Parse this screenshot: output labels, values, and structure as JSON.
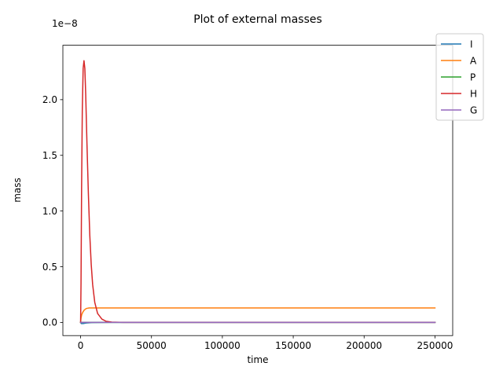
{
  "chart_data": {
    "type": "line",
    "title": "Plot of external masses",
    "xlabel": "time",
    "ylabel": "mass",
    "y_offset_text": "1e−8",
    "y_scale": 1e-08,
    "xlim": [
      -12500,
      262500
    ],
    "ylim": [
      -0.1185,
      2.4885
    ],
    "x_ticks": [
      0,
      50000,
      100000,
      150000,
      200000,
      250000
    ],
    "x_tick_labels": [
      "0",
      "50000",
      "100000",
      "150000",
      "200000",
      "250000"
    ],
    "y_ticks": [
      0.0,
      0.5,
      1.0,
      1.5,
      2.0
    ],
    "y_tick_labels": [
      "0.0",
      "0.5",
      "1.0",
      "1.5",
      "2.0"
    ],
    "grid": false,
    "legend_position": "top-right",
    "series": [
      {
        "name": "I",
        "color": "#1f77b4",
        "x": [
          0,
          500,
          1000,
          2000,
          4000,
          8000,
          20000,
          50000,
          100000,
          150000,
          200000,
          250000
        ],
        "y": [
          0.0,
          -0.01,
          -0.01,
          -0.01,
          -0.005,
          -0.002,
          0.0,
          0.0,
          0.0,
          0.0,
          0.0,
          0.0
        ]
      },
      {
        "name": "A",
        "color": "#ff7f0e",
        "x": [
          0,
          300,
          800,
          1500,
          2500,
          4000,
          6000,
          8000,
          12000,
          20000,
          50000,
          100000,
          150000,
          200000,
          250000
        ],
        "y": [
          0.0,
          0.04,
          0.07,
          0.09,
          0.11,
          0.125,
          0.13,
          0.13,
          0.13,
          0.13,
          0.13,
          0.13,
          0.13,
          0.13,
          0.13
        ]
      },
      {
        "name": "P",
        "color": "#2ca02c",
        "x": [
          0,
          50000,
          100000,
          150000,
          200000,
          250000
        ],
        "y": [
          0.0,
          0.0,
          0.0,
          0.0,
          0.0,
          0.0
        ]
      },
      {
        "name": "H",
        "color": "#d62728",
        "x": [
          0,
          300,
          700,
          1200,
          1800,
          2400,
          3000,
          3600,
          4500,
          5500,
          6500,
          7500,
          8500,
          10000,
          12000,
          15000,
          18000,
          22000,
          30000,
          50000,
          100000,
          150000,
          200000,
          250000
        ],
        "y": [
          0.0,
          0.35,
          1.2,
          1.9,
          2.28,
          2.35,
          2.28,
          2.05,
          1.6,
          1.15,
          0.78,
          0.52,
          0.34,
          0.18,
          0.08,
          0.03,
          0.01,
          0.003,
          0.0,
          0.0,
          0.0,
          0.0,
          0.0,
          0.0
        ]
      },
      {
        "name": "G",
        "color": "#9467bd",
        "x": [
          0,
          50000,
          100000,
          150000,
          200000,
          250000
        ],
        "y": [
          0.0,
          0.0,
          0.0,
          0.0,
          0.0,
          0.0
        ]
      }
    ]
  }
}
